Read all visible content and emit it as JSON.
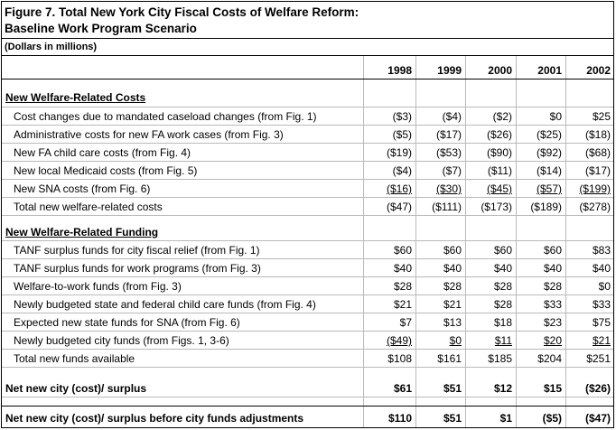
{
  "title_line1": "Figure 7.  Total New York City Fiscal Costs of Welfare Reform:",
  "title_line2": "Baseline Work Program Scenario",
  "units_note": "(Dollars in millions)",
  "years": [
    "1998",
    "1999",
    "2000",
    "2001",
    "2002"
  ],
  "rows": [
    {
      "type": "section",
      "label": "New Welfare-Related Costs",
      "values": []
    },
    {
      "type": "item",
      "label": "Cost changes due to mandated caseload changes (from Fig. 1)",
      "values": [
        "($3)",
        "($4)",
        "($2)",
        "$0",
        "$25"
      ]
    },
    {
      "type": "item",
      "label": "Administrative costs for new FA work cases (from Fig. 3)",
      "values": [
        "($5)",
        "($17)",
        "($26)",
        "($25)",
        "($18)"
      ]
    },
    {
      "type": "item",
      "label": "New FA child care costs (from Fig. 4)",
      "values": [
        "($19)",
        "($53)",
        "($90)",
        "($92)",
        "($68)"
      ]
    },
    {
      "type": "item",
      "label": "New local Medicaid costs (from Fig. 5)",
      "values": [
        "($4)",
        "($7)",
        "($11)",
        "($14)",
        "($17)"
      ]
    },
    {
      "type": "item",
      "underline": true,
      "label": "New SNA costs (from Fig. 6)",
      "values": [
        "($16)",
        "($30)",
        "($45)",
        "($57)",
        "($199)"
      ]
    },
    {
      "type": "item",
      "label": "Total new welfare-related costs",
      "values": [
        "($47)",
        "($111)",
        "($173)",
        "($189)",
        "($278)"
      ]
    },
    {
      "type": "section",
      "label": "New Welfare-Related Funding",
      "values": []
    },
    {
      "type": "item",
      "label": "TANF surplus funds for city fiscal relief (from Fig. 1)",
      "values": [
        "$60",
        "$60",
        "$60",
        "$60",
        "$83"
      ]
    },
    {
      "type": "item",
      "label": "TANF surplus funds for work programs (from Fig. 3)",
      "values": [
        "$40",
        "$40",
        "$40",
        "$40",
        "$40"
      ]
    },
    {
      "type": "item",
      "label": "Welfare-to-work funds (from Fig. 3)",
      "values": [
        "$28",
        "$28",
        "$28",
        "$28",
        "$0"
      ]
    },
    {
      "type": "item",
      "label": "Newly budgeted state and federal child care funds (from Fig. 4)",
      "values": [
        "$21",
        "$21",
        "$28",
        "$33",
        "$33"
      ]
    },
    {
      "type": "item",
      "label": "Expected new state funds for SNA (from Fig. 6)",
      "values": [
        "$7",
        "$13",
        "$18",
        "$23",
        "$75"
      ]
    },
    {
      "type": "item",
      "underline": true,
      "label": "Newly budgeted city funds (from Figs. 1, 3-6)",
      "values": [
        "($49)",
        "$0",
        "$11",
        "$20",
        "$21"
      ]
    },
    {
      "type": "item",
      "label": "Total new funds available",
      "values": [
        "$108",
        "$161",
        "$185",
        "$204",
        "$251"
      ]
    },
    {
      "type": "bold",
      "label": "Net new city (cost)/ surplus",
      "values": [
        "$61",
        "$51",
        "$12",
        "$15",
        "($26)"
      ]
    },
    {
      "type": "bold",
      "label": "Net new city (cost)/ surplus before city funds adjustments",
      "values": [
        "$110",
        "$51",
        "$1",
        "($5)",
        "($47)"
      ]
    }
  ]
}
